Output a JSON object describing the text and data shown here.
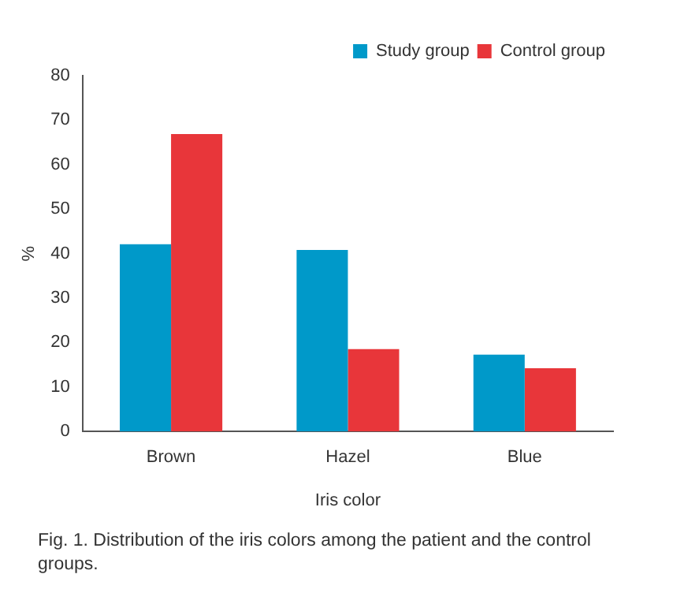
{
  "chart_data": {
    "type": "bar",
    "xlabel": "Iris color",
    "ylabel": "%",
    "categories": [
      "Brown",
      "Hazel",
      "Blue"
    ],
    "series": [
      {
        "name": "Study group",
        "color": "#0099c9",
        "values": [
          42.1,
          40.8,
          17.3
        ]
      },
      {
        "name": "Control group",
        "color": "#e8363a",
        "values": [
          66.9,
          18.5,
          14.2
        ]
      }
    ],
    "ylim": [
      0,
      80
    ],
    "yticks": [
      0,
      10,
      20,
      30,
      40,
      50,
      60,
      70,
      80
    ],
    "grid": false,
    "legend": "top right",
    "annotations": [
      "Fig. 1. Distribution of the iris colors among the patient and the control groups."
    ]
  }
}
